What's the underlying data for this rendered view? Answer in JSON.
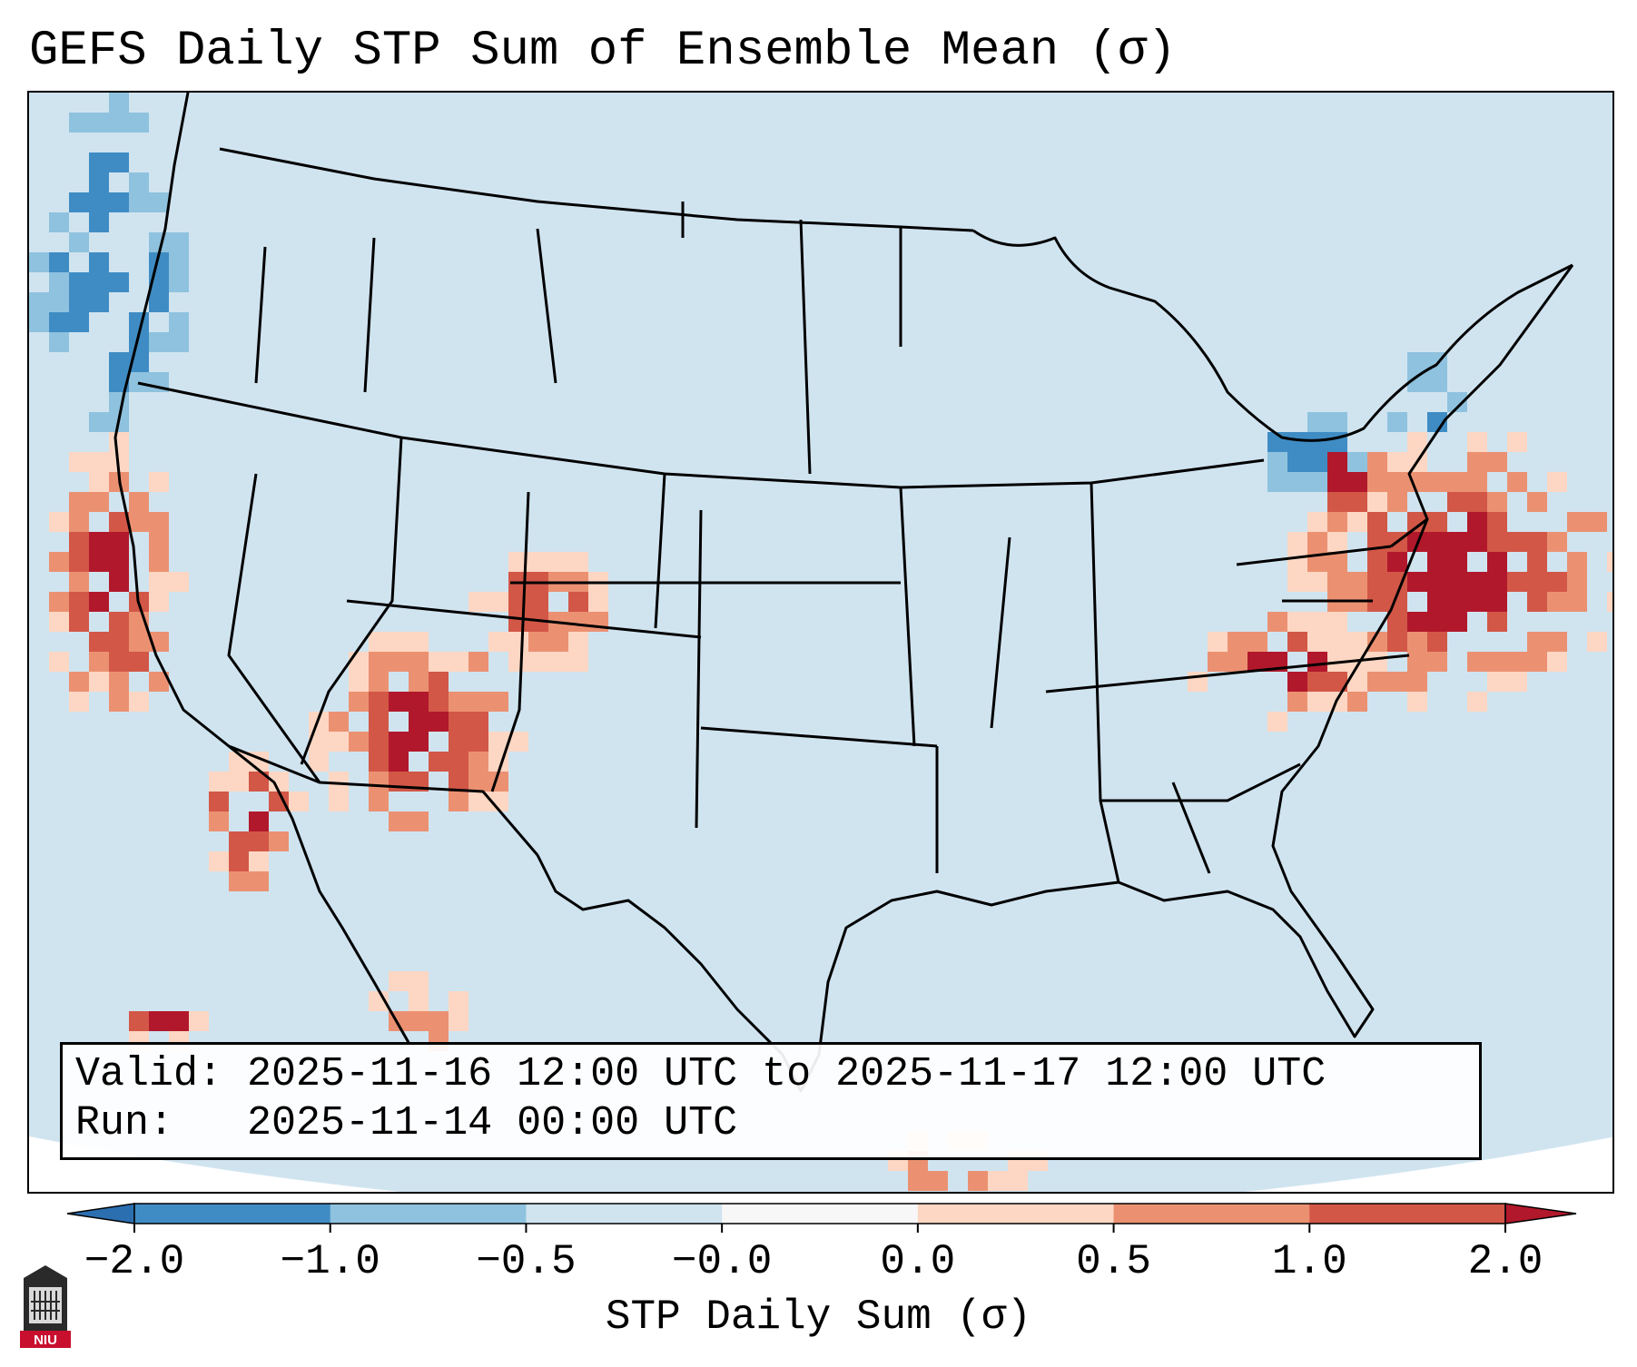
{
  "title": "GEFS Daily STP Sum of Ensemble Mean (σ)",
  "info": {
    "valid_label": "Valid:",
    "valid_value": "2025-11-16 12:00 UTC to 2025-11-17 12:00 UTC",
    "run_label": "Run:",
    "run_value": "2025-11-14 00:00 UTC"
  },
  "colorbar": {
    "label": "STP Daily Sum (σ)",
    "ticks": [
      "−2.0",
      "−1.0",
      "−0.5",
      "−0.0",
      "0.0",
      "0.5",
      "1.0",
      "2.0"
    ],
    "colors": [
      "#3f8cc4",
      "#8fc2de",
      "#d0e4f0",
      "#f7f7f7",
      "#fdd7c3",
      "#eb9172",
      "#d25747"
    ],
    "under_color": "#2c6fb0",
    "over_color": "#b2182b"
  },
  "map": {
    "region": "Contiguous United States",
    "ocean_color": "#d0e4f0",
    "outside_color": "#ffffff"
  },
  "logo": {
    "text": "NIU",
    "icon": "university-tower-icon"
  }
}
